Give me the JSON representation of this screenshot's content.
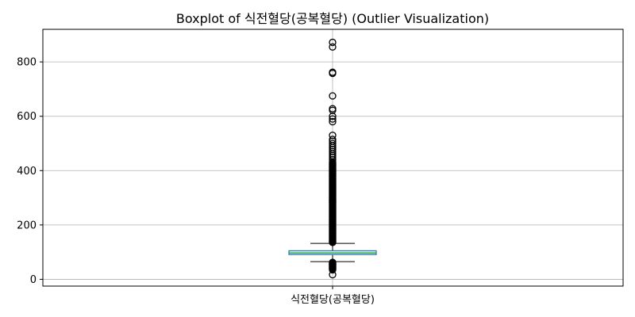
{
  "chart_data": {
    "type": "box",
    "title": "Boxplot of 식전혈당(공복혈당) (Outlier Visualization)",
    "xlabel": "",
    "ylabel": "",
    "categories": [
      "식전혈당(공복혈당)"
    ],
    "ylim": [
      -25,
      920
    ],
    "yticks": [
      0,
      200,
      400,
      600,
      800
    ],
    "grid": "y",
    "box": {
      "whisker_low": 65,
      "q1": 91,
      "median": 97,
      "q3": 105,
      "whisker_high": 132
    },
    "outliers_high": [
      872,
      855,
      762,
      758,
      675,
      628,
      622,
      600,
      590,
      580,
      530,
      515,
      508,
      500,
      492,
      485,
      478,
      470,
      462,
      455,
      448,
      440,
      432,
      425,
      418,
      410,
      402,
      395,
      388,
      380,
      372,
      365,
      358,
      350,
      342,
      335,
      328,
      320,
      312,
      305,
      298,
      290,
      282,
      275,
      268,
      260,
      252,
      245,
      238,
      230,
      222,
      215,
      208,
      200,
      193,
      186,
      179,
      172,
      165,
      158,
      152,
      146,
      140,
      136
    ],
    "outliers_low": [
      62,
      58,
      55,
      52,
      50,
      47,
      44,
      41,
      38,
      35,
      17
    ],
    "colors": {
      "box_edge": "#1f77b4",
      "box_face": "#e0f0f8",
      "median": "#2ca02c",
      "whisker": "#000000",
      "flier": "#000000",
      "grid": "#b0b0b0"
    }
  }
}
